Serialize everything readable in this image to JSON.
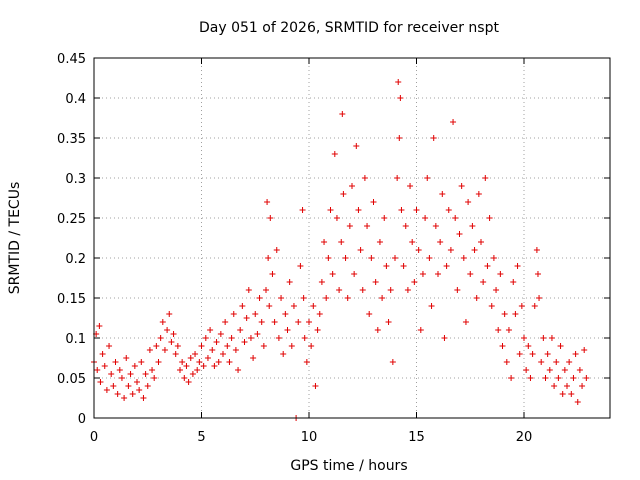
{
  "chart_data": {
    "type": "scatter",
    "title": "Day 051 of 2026, SRMTID for receiver nspt",
    "xlabel": "GPS time / hours",
    "ylabel": "SRMTID / TECUs",
    "xlim": [
      0,
      24
    ],
    "ylim": [
      0,
      0.45
    ],
    "x_ticks": [
      0,
      5,
      10,
      15,
      20
    ],
    "y_ticks": [
      0,
      0.05,
      0.1,
      0.15,
      0.2,
      0.25,
      0.3,
      0.35,
      0.4,
      0.45
    ],
    "grid": true,
    "marker": "plus",
    "series_color": "#e00000",
    "series": [
      {
        "points": [
          [
            0.0,
            0.07
          ],
          [
            0.1,
            0.105
          ],
          [
            0.15,
            0.06
          ],
          [
            0.25,
            0.115
          ],
          [
            0.3,
            0.045
          ],
          [
            0.4,
            0.08
          ],
          [
            0.5,
            0.065
          ],
          [
            0.6,
            0.035
          ],
          [
            0.7,
            0.09
          ],
          [
            0.8,
            0.055
          ],
          [
            0.9,
            0.04
          ],
          [
            1.0,
            0.07
          ],
          [
            1.1,
            0.03
          ],
          [
            1.2,
            0.06
          ],
          [
            1.3,
            0.05
          ],
          [
            1.4,
            0.025
          ],
          [
            1.5,
            0.075
          ],
          [
            1.6,
            0.04
          ],
          [
            1.7,
            0.055
          ],
          [
            1.8,
            0.03
          ],
          [
            1.9,
            0.065
          ],
          [
            2.0,
            0.045
          ],
          [
            2.1,
            0.035
          ],
          [
            2.2,
            0.07
          ],
          [
            2.3,
            0.025
          ],
          [
            2.4,
            0.055
          ],
          [
            2.5,
            0.04
          ],
          [
            2.6,
            0.085
          ],
          [
            2.7,
            0.06
          ],
          [
            2.8,
            0.05
          ],
          [
            2.9,
            0.09
          ],
          [
            3.0,
            0.07
          ],
          [
            3.1,
            0.1
          ],
          [
            3.2,
            0.12
          ],
          [
            3.3,
            0.085
          ],
          [
            3.4,
            0.11
          ],
          [
            3.5,
            0.13
          ],
          [
            3.6,
            0.095
          ],
          [
            3.7,
            0.105
          ],
          [
            3.8,
            0.08
          ],
          [
            3.9,
            0.09
          ],
          [
            4.0,
            0.06
          ],
          [
            4.1,
            0.07
          ],
          [
            4.2,
            0.05
          ],
          [
            4.3,
            0.065
          ],
          [
            4.4,
            0.045
          ],
          [
            4.5,
            0.075
          ],
          [
            4.6,
            0.055
          ],
          [
            4.7,
            0.08
          ],
          [
            4.8,
            0.06
          ],
          [
            4.9,
            0.07
          ],
          [
            5.0,
            0.09
          ],
          [
            5.1,
            0.065
          ],
          [
            5.2,
            0.1
          ],
          [
            5.3,
            0.075
          ],
          [
            5.4,
            0.11
          ],
          [
            5.5,
            0.085
          ],
          [
            5.6,
            0.065
          ],
          [
            5.7,
            0.095
          ],
          [
            5.8,
            0.07
          ],
          [
            5.9,
            0.105
          ],
          [
            6.0,
            0.08
          ],
          [
            6.1,
            0.12
          ],
          [
            6.2,
            0.09
          ],
          [
            6.3,
            0.07
          ],
          [
            6.4,
            0.1
          ],
          [
            6.5,
            0.13
          ],
          [
            6.6,
            0.085
          ],
          [
            6.7,
            0.06
          ],
          [
            6.8,
            0.11
          ],
          [
            6.9,
            0.14
          ],
          [
            7.0,
            0.095
          ],
          [
            7.1,
            0.125
          ],
          [
            7.2,
            0.16
          ],
          [
            7.3,
            0.1
          ],
          [
            7.4,
            0.075
          ],
          [
            7.5,
            0.13
          ],
          [
            7.6,
            0.105
          ],
          [
            7.7,
            0.15
          ],
          [
            7.8,
            0.12
          ],
          [
            7.9,
            0.09
          ],
          [
            8.0,
            0.16
          ],
          [
            8.05,
            0.27
          ],
          [
            8.1,
            0.2
          ],
          [
            8.15,
            0.14
          ],
          [
            8.2,
            0.25
          ],
          [
            8.3,
            0.18
          ],
          [
            8.4,
            0.12
          ],
          [
            8.5,
            0.21
          ],
          [
            8.6,
            0.1
          ],
          [
            8.7,
            0.15
          ],
          [
            8.8,
            0.08
          ],
          [
            8.9,
            0.13
          ],
          [
            9.0,
            0.11
          ],
          [
            9.1,
            0.17
          ],
          [
            9.2,
            0.09
          ],
          [
            9.3,
            0.14
          ],
          [
            9.4,
            0.0
          ],
          [
            9.5,
            0.12
          ],
          [
            9.6,
            0.19
          ],
          [
            9.7,
            0.26
          ],
          [
            9.75,
            0.15
          ],
          [
            9.8,
            0.1
          ],
          [
            9.9,
            0.07
          ],
          [
            10.0,
            0.12
          ],
          [
            10.1,
            0.09
          ],
          [
            10.2,
            0.14
          ],
          [
            10.3,
            0.04
          ],
          [
            10.4,
            0.11
          ],
          [
            10.5,
            0.13
          ],
          [
            10.6,
            0.17
          ],
          [
            10.7,
            0.22
          ],
          [
            10.8,
            0.15
          ],
          [
            10.9,
            0.2
          ],
          [
            11.0,
            0.26
          ],
          [
            11.1,
            0.18
          ],
          [
            11.2,
            0.33
          ],
          [
            11.3,
            0.25
          ],
          [
            11.4,
            0.16
          ],
          [
            11.5,
            0.22
          ],
          [
            11.55,
            0.38
          ],
          [
            11.6,
            0.28
          ],
          [
            11.7,
            0.2
          ],
          [
            11.8,
            0.15
          ],
          [
            11.9,
            0.24
          ],
          [
            12.0,
            0.29
          ],
          [
            12.1,
            0.18
          ],
          [
            12.2,
            0.34
          ],
          [
            12.3,
            0.26
          ],
          [
            12.4,
            0.21
          ],
          [
            12.5,
            0.16
          ],
          [
            12.6,
            0.3
          ],
          [
            12.7,
            0.24
          ],
          [
            12.8,
            0.13
          ],
          [
            12.9,
            0.2
          ],
          [
            13.0,
            0.27
          ],
          [
            13.1,
            0.17
          ],
          [
            13.2,
            0.11
          ],
          [
            13.3,
            0.22
          ],
          [
            13.4,
            0.15
          ],
          [
            13.5,
            0.25
          ],
          [
            13.6,
            0.19
          ],
          [
            13.7,
            0.12
          ],
          [
            13.8,
            0.16
          ],
          [
            13.9,
            0.07
          ],
          [
            14.0,
            0.2
          ],
          [
            14.1,
            0.3
          ],
          [
            14.15,
            0.42
          ],
          [
            14.2,
            0.35
          ],
          [
            14.25,
            0.4
          ],
          [
            14.3,
            0.26
          ],
          [
            14.4,
            0.19
          ],
          [
            14.5,
            0.24
          ],
          [
            14.6,
            0.16
          ],
          [
            14.7,
            0.29
          ],
          [
            14.8,
            0.22
          ],
          [
            14.9,
            0.17
          ],
          [
            15.0,
            0.26
          ],
          [
            15.1,
            0.21
          ],
          [
            15.2,
            0.11
          ],
          [
            15.3,
            0.18
          ],
          [
            15.4,
            0.25
          ],
          [
            15.5,
            0.3
          ],
          [
            15.6,
            0.2
          ],
          [
            15.7,
            0.14
          ],
          [
            15.8,
            0.35
          ],
          [
            15.9,
            0.24
          ],
          [
            16.0,
            0.18
          ],
          [
            16.1,
            0.22
          ],
          [
            16.2,
            0.28
          ],
          [
            16.3,
            0.1
          ],
          [
            16.4,
            0.19
          ],
          [
            16.5,
            0.26
          ],
          [
            16.6,
            0.21
          ],
          [
            16.7,
            0.37
          ],
          [
            16.8,
            0.25
          ],
          [
            16.9,
            0.16
          ],
          [
            17.0,
            0.23
          ],
          [
            17.1,
            0.29
          ],
          [
            17.2,
            0.2
          ],
          [
            17.3,
            0.12
          ],
          [
            17.4,
            0.27
          ],
          [
            17.5,
            0.18
          ],
          [
            17.6,
            0.24
          ],
          [
            17.7,
            0.21
          ],
          [
            17.8,
            0.15
          ],
          [
            17.9,
            0.28
          ],
          [
            18.0,
            0.22
          ],
          [
            18.1,
            0.17
          ],
          [
            18.2,
            0.3
          ],
          [
            18.3,
            0.19
          ],
          [
            18.4,
            0.25
          ],
          [
            18.5,
            0.14
          ],
          [
            18.6,
            0.2
          ],
          [
            18.7,
            0.16
          ],
          [
            18.8,
            0.11
          ],
          [
            18.9,
            0.18
          ],
          [
            19.0,
            0.09
          ],
          [
            19.1,
            0.13
          ],
          [
            19.2,
            0.07
          ],
          [
            19.3,
            0.11
          ],
          [
            19.4,
            0.05
          ],
          [
            19.5,
            0.17
          ],
          [
            19.6,
            0.13
          ],
          [
            19.7,
            0.19
          ],
          [
            19.8,
            0.08
          ],
          [
            19.9,
            0.14
          ],
          [
            20.0,
            0.1
          ],
          [
            20.1,
            0.06
          ],
          [
            20.2,
            0.09
          ],
          [
            20.3,
            0.05
          ],
          [
            20.4,
            0.08
          ],
          [
            20.5,
            0.14
          ],
          [
            20.6,
            0.21
          ],
          [
            20.65,
            0.18
          ],
          [
            20.7,
            0.15
          ],
          [
            20.8,
            0.07
          ],
          [
            20.9,
            0.1
          ],
          [
            21.0,
            0.05
          ],
          [
            21.1,
            0.08
          ],
          [
            21.2,
            0.06
          ],
          [
            21.3,
            0.1
          ],
          [
            21.4,
            0.04
          ],
          [
            21.5,
            0.07
          ],
          [
            21.6,
            0.05
          ],
          [
            21.7,
            0.09
          ],
          [
            21.8,
            0.03
          ],
          [
            21.9,
            0.06
          ],
          [
            22.0,
            0.04
          ],
          [
            22.1,
            0.07
          ],
          [
            22.2,
            0.03
          ],
          [
            22.3,
            0.05
          ],
          [
            22.4,
            0.08
          ],
          [
            22.5,
            0.02
          ],
          [
            22.6,
            0.06
          ],
          [
            22.7,
            0.04
          ],
          [
            22.8,
            0.085
          ],
          [
            22.9,
            0.05
          ]
        ]
      }
    ]
  }
}
